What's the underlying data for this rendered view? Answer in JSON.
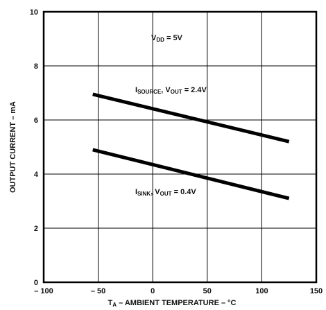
{
  "chart_data": {
    "type": "line",
    "xlabel": {
      "main": "T",
      "sub": "A",
      "rest": " – AMBIENT TEMPERATURE – °C"
    },
    "ylabel": "OUTPUT CURRENT – mA",
    "xlim": [
      -100,
      150
    ],
    "ylim": [
      0,
      10
    ],
    "x_ticks": [
      -100,
      -50,
      0,
      50,
      100,
      150
    ],
    "x_tick_labels": [
      "– 100",
      "– 50",
      "0",
      "50",
      "100",
      "150"
    ],
    "y_ticks": [
      0,
      2,
      4,
      6,
      8,
      10
    ],
    "y_tick_labels": [
      "0",
      "2",
      "4",
      "6",
      "8",
      "10"
    ],
    "grid": true,
    "series": [
      {
        "name": "I_SOURCE, V_OUT = 2.4V",
        "x": [
          -55,
          125
        ],
        "y": [
          6.95,
          5.2
        ]
      },
      {
        "name": "I_SINK, V_OUT = 0.4V",
        "x": [
          -55,
          125
        ],
        "y": [
          4.9,
          3.1
        ]
      }
    ],
    "annotations": {
      "vdd": {
        "main": "V",
        "sub": "DD",
        "rest": " = 5V"
      },
      "source": {
        "main": "I",
        "sub": "SOURCE",
        "mid": ", V",
        "sub2": "OUT",
        "rest": " = 2.4V"
      },
      "sink": {
        "main": "I",
        "sub": "SINK",
        "mid": ", V",
        "sub2": "OUT",
        "rest": " = 0.4V"
      }
    }
  }
}
